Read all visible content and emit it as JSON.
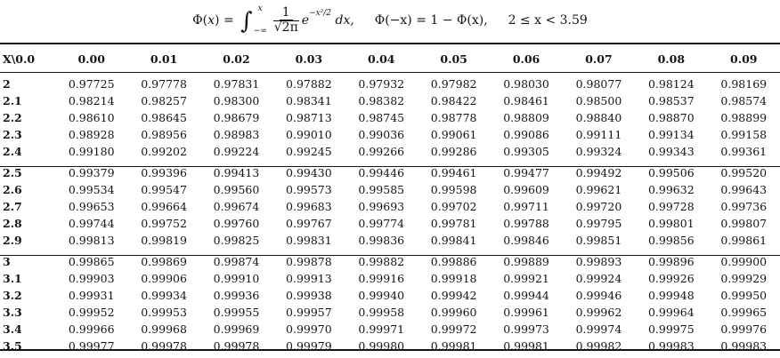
{
  "formula": {
    "phi": "Φ(",
    "x": "x",
    "eq": ") =",
    "integral": "∫",
    "upper": "x",
    "lower": "−∞",
    "num": "1",
    "den": "√2π",
    "exp_base": "e",
    "exp_sup": "−x²/2",
    "dx": "dx,",
    "identity": "Φ(−x) = 1 − Φ(x),",
    "range": "2 ≤ x < 3.59"
  },
  "table": {
    "corner": "X\\0.0",
    "columns": [
      "0.00",
      "0.01",
      "0.02",
      "0.03",
      "0.04",
      "0.05",
      "0.06",
      "0.07",
      "0.08",
      "0.09"
    ],
    "groups": [
      [
        {
          "x": "2",
          "values": [
            "0.97725",
            "0.97778",
            "0.97831",
            "0.97882",
            "0.97932",
            "0.97982",
            "0.98030",
            "0.98077",
            "0.98124",
            "0.98169"
          ]
        },
        {
          "x": "2.1",
          "values": [
            "0.98214",
            "0.98257",
            "0.98300",
            "0.98341",
            "0.98382",
            "0.98422",
            "0.98461",
            "0.98500",
            "0.98537",
            "0.98574"
          ]
        },
        {
          "x": "2.2",
          "values": [
            "0.98610",
            "0.98645",
            "0.98679",
            "0.98713",
            "0.98745",
            "0.98778",
            "0.98809",
            "0.98840",
            "0.98870",
            "0.98899"
          ]
        },
        {
          "x": "2.3",
          "values": [
            "0.98928",
            "0.98956",
            "0.98983",
            "0.99010",
            "0.99036",
            "0.99061",
            "0.99086",
            "0.99111",
            "0.99134",
            "0.99158"
          ]
        },
        {
          "x": "2.4",
          "values": [
            "0.99180",
            "0.99202",
            "0.99224",
            "0.99245",
            "0.99266",
            "0.99286",
            "0.99305",
            "0.99324",
            "0.99343",
            "0.99361"
          ]
        }
      ],
      [
        {
          "x": "2.5",
          "values": [
            "0.99379",
            "0.99396",
            "0.99413",
            "0.99430",
            "0.99446",
            "0.99461",
            "0.99477",
            "0.99492",
            "0.99506",
            "0.99520"
          ]
        },
        {
          "x": "2.6",
          "values": [
            "0.99534",
            "0.99547",
            "0.99560",
            "0.99573",
            "0.99585",
            "0.99598",
            "0.99609",
            "0.99621",
            "0.99632",
            "0.99643"
          ]
        },
        {
          "x": "2.7",
          "values": [
            "0.99653",
            "0.99664",
            "0.99674",
            "0.99683",
            "0.99693",
            "0.99702",
            "0.99711",
            "0.99720",
            "0.99728",
            "0.99736"
          ]
        },
        {
          "x": "2.8",
          "values": [
            "0.99744",
            "0.99752",
            "0.99760",
            "0.99767",
            "0.99774",
            "0.99781",
            "0.99788",
            "0.99795",
            "0.99801",
            "0.99807"
          ]
        },
        {
          "x": "2.9",
          "values": [
            "0.99813",
            "0.99819",
            "0.99825",
            "0.99831",
            "0.99836",
            "0.99841",
            "0.99846",
            "0.99851",
            "0.99856",
            "0.99861"
          ]
        }
      ],
      [
        {
          "x": "3",
          "values": [
            "0.99865",
            "0.99869",
            "0.99874",
            "0.99878",
            "0.99882",
            "0.99886",
            "0.99889",
            "0.99893",
            "0.99896",
            "0.99900"
          ]
        },
        {
          "x": "3.1",
          "values": [
            "0.99903",
            "0.99906",
            "0.99910",
            "0.99913",
            "0.99916",
            "0.99918",
            "0.99921",
            "0.99924",
            "0.99926",
            "0.99929"
          ]
        },
        {
          "x": "3.2",
          "values": [
            "0.99931",
            "0.99934",
            "0.99936",
            "0.99938",
            "0.99940",
            "0.99942",
            "0.99944",
            "0.99946",
            "0.99948",
            "0.99950"
          ]
        },
        {
          "x": "3.3",
          "values": [
            "0.99952",
            "0.99953",
            "0.99955",
            "0.99957",
            "0.99958",
            "0.99960",
            "0.99961",
            "0.99962",
            "0.99964",
            "0.99965"
          ]
        },
        {
          "x": "3.4",
          "values": [
            "0.99966",
            "0.99968",
            "0.99969",
            "0.99970",
            "0.99971",
            "0.99972",
            "0.99973",
            "0.99974",
            "0.99975",
            "0.99976"
          ]
        },
        {
          "x": "3.5",
          "values": [
            "0.99977",
            "0.99978",
            "0.99978",
            "0.99979",
            "0.99980",
            "0.99981",
            "0.99981",
            "0.99982",
            "0.99983",
            "0.99983"
          ]
        }
      ]
    ]
  }
}
